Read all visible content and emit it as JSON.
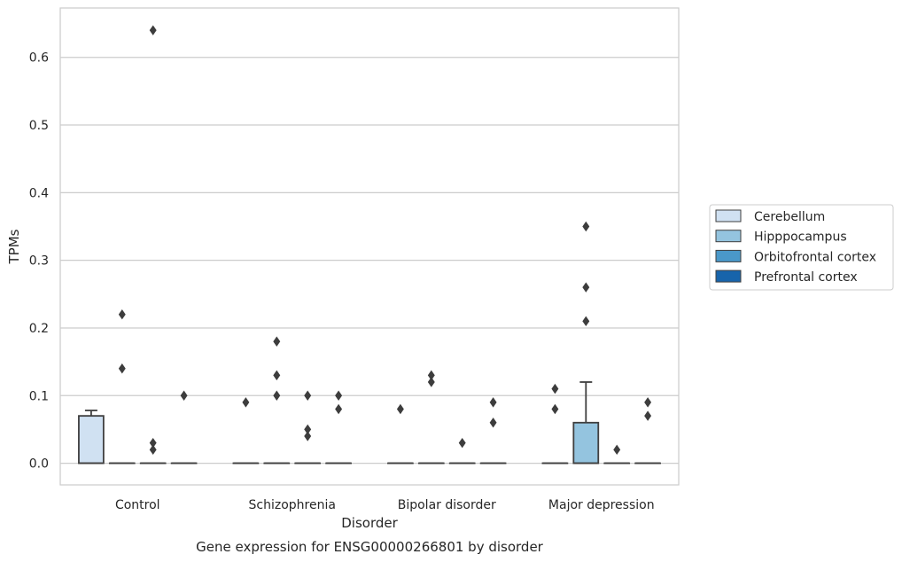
{
  "chart_data": {
    "type": "box",
    "title": "Gene expression for ENSG00000266801 by disorder",
    "xlabel": "Disorder",
    "ylabel": "TPMs",
    "ylim": [
      -0.032,
      0.673
    ],
    "yticks": [
      "0.0",
      "0.1",
      "0.2",
      "0.3",
      "0.4",
      "0.5",
      "0.6"
    ],
    "grid": "horizontal",
    "legend_position": "right",
    "categories": [
      "Control",
      "Schizophrenia",
      "Bipolar disorder",
      "Major depression"
    ],
    "series": [
      {
        "name": "Cerebellum",
        "color": "#d0e1f2",
        "boxes": [
          {
            "q1": 0.0,
            "median": 0.0,
            "q3": 0.07,
            "whisker_low": 0.0,
            "whisker_high": 0.078,
            "outliers": []
          },
          {
            "q1": 0.0,
            "median": 0.0,
            "q3": 0.0,
            "whisker_low": 0.0,
            "whisker_high": 0.0,
            "outliers": [
              0.09
            ]
          },
          {
            "q1": 0.0,
            "median": 0.0,
            "q3": 0.0,
            "whisker_low": 0.0,
            "whisker_high": 0.0,
            "outliers": [
              0.08
            ]
          },
          {
            "q1": 0.0,
            "median": 0.0,
            "q3": 0.0,
            "whisker_low": 0.0,
            "whisker_high": 0.0,
            "outliers": [
              0.08,
              0.11
            ]
          }
        ]
      },
      {
        "name": "Hipppocampus",
        "color": "#94c4df",
        "boxes": [
          {
            "q1": 0.0,
            "median": 0.0,
            "q3": 0.0,
            "whisker_low": 0.0,
            "whisker_high": 0.0,
            "outliers": [
              0.14,
              0.22
            ]
          },
          {
            "q1": 0.0,
            "median": 0.0,
            "q3": 0.0,
            "whisker_low": 0.0,
            "whisker_high": 0.0,
            "outliers": [
              0.1,
              0.13,
              0.18
            ]
          },
          {
            "q1": 0.0,
            "median": 0.0,
            "q3": 0.0,
            "whisker_low": 0.0,
            "whisker_high": 0.0,
            "outliers": [
              0.12,
              0.13
            ]
          },
          {
            "q1": 0.0,
            "median": 0.0,
            "q3": 0.06,
            "whisker_low": 0.0,
            "whisker_high": 0.12,
            "outliers": [
              0.21,
              0.26,
              0.35
            ]
          }
        ]
      },
      {
        "name": "Orbitofrontal cortex",
        "color": "#4a98c9",
        "boxes": [
          {
            "q1": 0.0,
            "median": 0.0,
            "q3": 0.0,
            "whisker_low": 0.0,
            "whisker_high": 0.0,
            "outliers": [
              0.02,
              0.03,
              0.64
            ]
          },
          {
            "q1": 0.0,
            "median": 0.0,
            "q3": 0.0,
            "whisker_low": 0.0,
            "whisker_high": 0.0,
            "outliers": [
              0.04,
              0.05,
              0.1
            ]
          },
          {
            "q1": 0.0,
            "median": 0.0,
            "q3": 0.0,
            "whisker_low": 0.0,
            "whisker_high": 0.0,
            "outliers": [
              0.03
            ]
          },
          {
            "q1": 0.0,
            "median": 0.0,
            "q3": 0.0,
            "whisker_low": 0.0,
            "whisker_high": 0.0,
            "outliers": [
              0.02
            ]
          }
        ]
      },
      {
        "name": "Prefrontal cortex",
        "color": "#1764ab",
        "boxes": [
          {
            "q1": 0.0,
            "median": 0.0,
            "q3": 0.0,
            "whisker_low": 0.0,
            "whisker_high": 0.0,
            "outliers": [
              0.1
            ]
          },
          {
            "q1": 0.0,
            "median": 0.0,
            "q3": 0.0,
            "whisker_low": 0.0,
            "whisker_high": 0.0,
            "outliers": [
              0.08,
              0.1
            ]
          },
          {
            "q1": 0.0,
            "median": 0.0,
            "q3": 0.0,
            "whisker_low": 0.0,
            "whisker_high": 0.0,
            "outliers": [
              0.06,
              0.09
            ]
          },
          {
            "q1": 0.0,
            "median": 0.0,
            "q3": 0.0,
            "whisker_low": 0.0,
            "whisker_high": 0.0,
            "outliers": [
              0.07,
              0.09
            ]
          }
        ]
      }
    ]
  }
}
